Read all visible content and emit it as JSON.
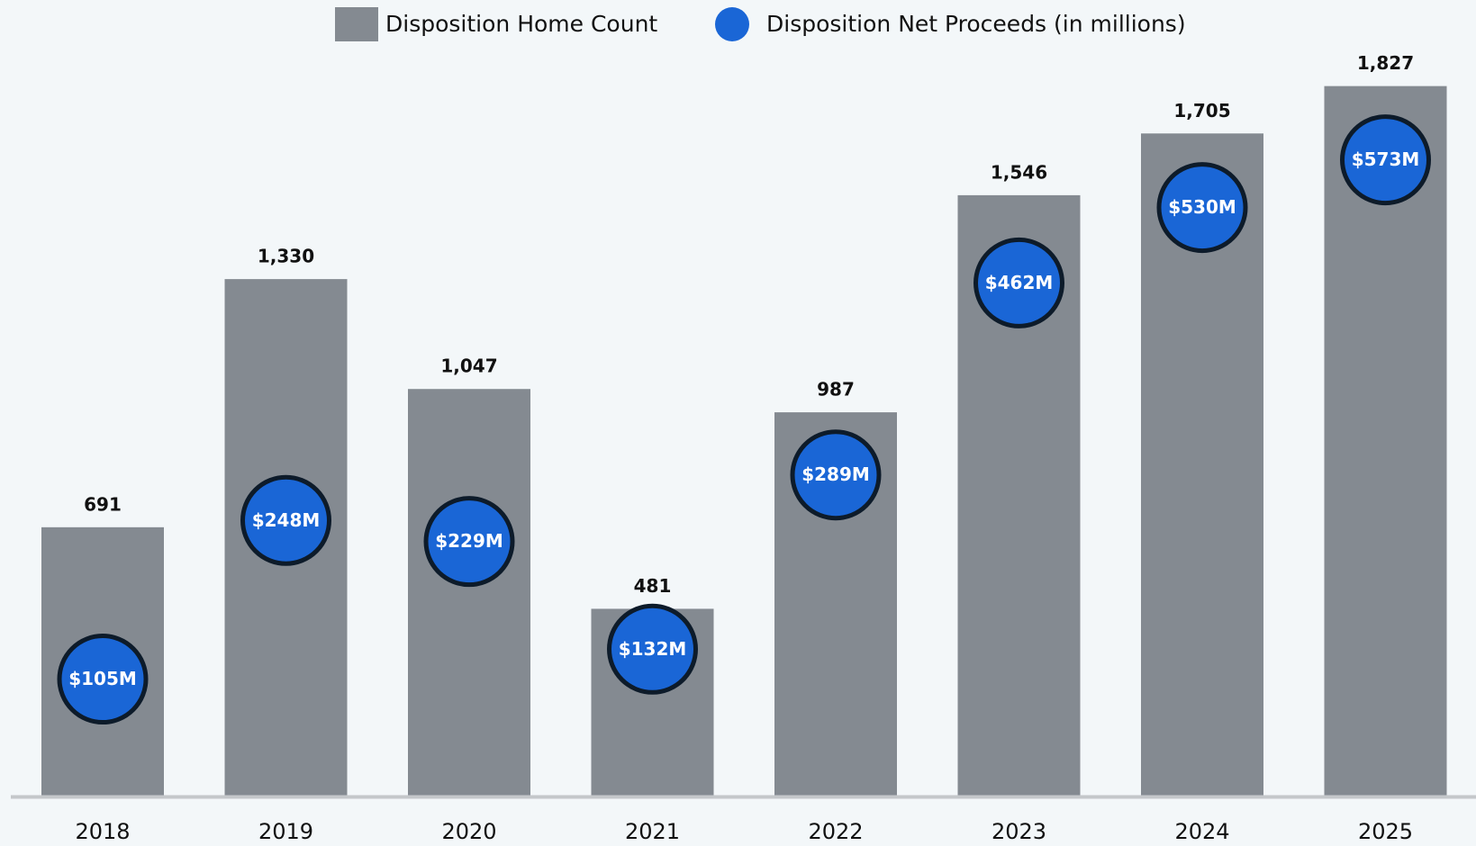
{
  "chart_data": {
    "type": "bar",
    "categories": [
      "2018",
      "2019",
      "2020",
      "2021",
      "2022",
      "2023",
      "2024",
      "2025"
    ],
    "series": [
      {
        "name": "Disposition Home Count",
        "color": "#848a91",
        "values": [
          691,
          1330,
          1047,
          481,
          987,
          1546,
          1705,
          1827
        ],
        "value_labels": [
          "691",
          "1,330",
          "1,047",
          "481",
          "987",
          "1,546",
          "1,705",
          "1,827"
        ]
      },
      {
        "name": "Disposition Net Proceeds (in millions)",
        "type": "scatter",
        "color": "#1a66d6",
        "axis": "y2",
        "values": [
          105,
          248,
          229,
          132,
          289,
          462,
          530,
          573
        ],
        "value_labels": [
          "$105M",
          "$248M",
          "$229M",
          "$132M",
          "$289M",
          "$462M",
          "$530M",
          "$573M"
        ]
      }
    ],
    "ylim": [
      0,
      2000
    ],
    "y2lim": [
      0,
      700
    ],
    "legend": "top"
  }
}
